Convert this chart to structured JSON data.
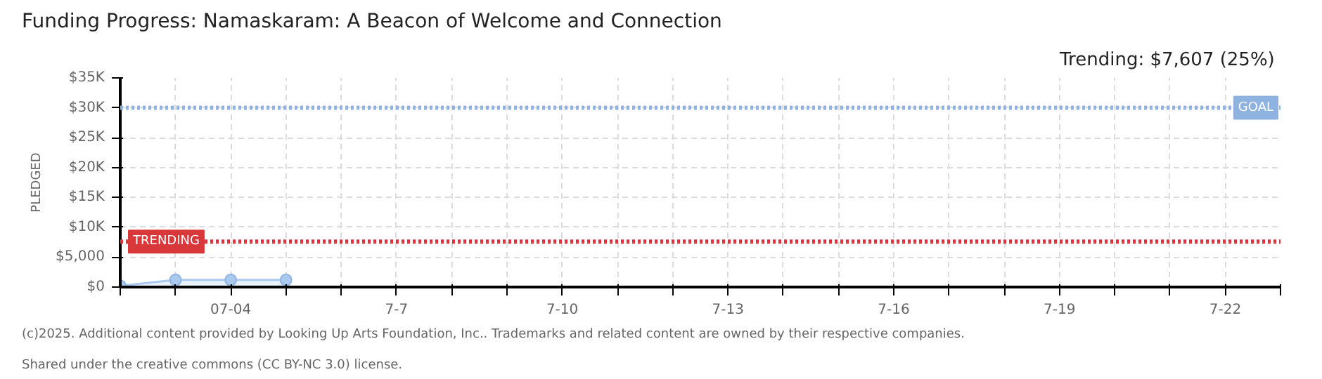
{
  "chart_data": {
    "type": "area",
    "title": "Funding Progress: Namaskaram: A Beacon of Welcome and Connection",
    "subtitle": "Trending:  $7,607 (25%)",
    "ylabel": "PLEDGED",
    "categories": [
      null,
      null,
      "07-04",
      null,
      null,
      "7-7",
      null,
      null,
      "7-10",
      null,
      null,
      "7-13",
      null,
      null,
      "7-16",
      null,
      null,
      "7-19",
      null,
      null,
      "7-22",
      null
    ],
    "series": [
      {
        "color": "#a9c9ee",
        "values": [
          200,
          1200,
          1200,
          1200,
          null,
          null,
          null,
          null,
          null,
          null,
          null,
          null,
          null,
          null,
          null,
          null,
          null,
          null,
          null,
          null,
          null,
          null
        ]
      }
    ],
    "marker": "circle",
    "ylim": [
      0,
      35000
    ],
    "yticks": [
      {
        "value": 0,
        "label": "$0"
      },
      {
        "value": 5000,
        "label": "$5,000"
      },
      {
        "value": 10000,
        "label": "$10K"
      },
      {
        "value": 15000,
        "label": "$15K"
      },
      {
        "value": 20000,
        "label": "$20K"
      },
      {
        "value": 25000,
        "label": "$25K"
      },
      {
        "value": 30000,
        "label": "$30K"
      },
      {
        "value": 35000,
        "label": "$35K"
      }
    ],
    "grid": true,
    "ref_lines": [
      {
        "axis": "y",
        "value": 30000,
        "label": "GOAL",
        "color": "#8fb3e0",
        "line_style": "dotted"
      },
      {
        "axis": "y",
        "value": 7607,
        "label": "TRENDING",
        "color": "#d9383a",
        "line_style": "dotted"
      }
    ],
    "annotations": [
      "(c)2025. Additional content provided by Looking Up Arts Foundation, Inc.. Trademarks and related content are owned by their respective companies.",
      "Shared under the creative commons (CC BY-NC 3.0) license."
    ]
  }
}
